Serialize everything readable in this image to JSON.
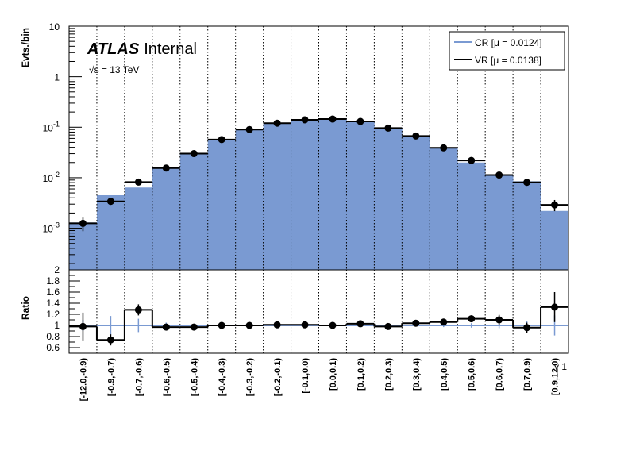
{
  "chart_data": [
    {
      "type": "histogram",
      "panel": "main",
      "ylabel": "Evts./bin",
      "yscale": "log",
      "ylim": [
        0.00015,
        10
      ],
      "ytick_labels": [
        {
          "v": 0.001,
          "label": "10",
          "exp": "-3"
        },
        {
          "v": 0.01,
          "label": "10",
          "exp": "-2"
        },
        {
          "v": 0.1,
          "label": "10",
          "exp": "-1"
        },
        {
          "v": 1,
          "label": "1",
          "exp": ""
        },
        {
          "v": 10,
          "label": "10",
          "exp": ""
        }
      ],
      "atlas_label": "ATLAS",
      "atlas_sub": "Internal",
      "energy_label": "√s = 13 TeV",
      "legend": {
        "position": "top-right",
        "entries": [
          "CR [μ = 0.0124]",
          "VR [μ = 0.0138]"
        ]
      },
      "categories": [
        "[-12.0,-0.9)",
        "[-0.9,-0.7)",
        "[-0.7,-0.6)",
        "[-0.6,-0.5)",
        "[-0.5,-0.4)",
        "[-0.4,-0.3)",
        "[-0.3,-0.2)",
        "[-0.2,-0.1)",
        "[-0.1,0.0)",
        "[0.0,0.1)",
        "[0.1,0.2)",
        "[0.2,0.3)",
        "[0.3,0.4)",
        "[0.4,0.5)",
        "[0.5,0.6)",
        "[0.6,0.7)",
        "[0.7,0.9)",
        "[0.9,12.0)"
      ],
      "series": [
        {
          "name": "CR [μ = 0.0124]",
          "style": "filled-histogram",
          "values": [
            0.0013,
            0.0045,
            0.0064,
            0.016,
            0.031,
            0.058,
            0.09,
            0.12,
            0.14,
            0.145,
            0.13,
            0.098,
            0.065,
            0.038,
            0.02,
            0.011,
            0.0085,
            0.0022
          ]
        },
        {
          "name": "VR [μ = 0.0138]",
          "style": "line-with-points",
          "values": [
            0.00125,
            0.0034,
            0.0082,
            0.0155,
            0.03,
            0.057,
            0.09,
            0.12,
            0.14,
            0.145,
            0.13,
            0.096,
            0.067,
            0.039,
            0.022,
            0.0113,
            0.0081,
            0.0029
          ],
          "errors_rel": [
            0.3,
            0.14,
            0.1,
            0.06,
            0.04,
            0.03,
            0.02,
            0.02,
            0.02,
            0.02,
            0.02,
            0.02,
            0.03,
            0.04,
            0.06,
            0.08,
            0.09,
            0.25
          ]
        }
      ],
      "colors": {
        "cr": "#7a9ad2",
        "vr": "#000000"
      }
    },
    {
      "type": "line",
      "panel": "ratio",
      "ylabel": "Ratio",
      "ylim": [
        0.5,
        2
      ],
      "ytick_labels": [
        "0.6",
        "0.8",
        "1",
        "1.2",
        "1.4",
        "1.6",
        "1.8",
        "2"
      ],
      "xlabel_suffix": "γ 1",
      "cr_ratio": {
        "values": 1.0,
        "errors": [
          0.1,
          0.17,
          0.12,
          0.05,
          0.03,
          0.02,
          0.02,
          0.02,
          0.02,
          0.02,
          0.02,
          0.02,
          0.02,
          0.03,
          0.04,
          0.05,
          0.08,
          0.18
        ]
      },
      "vr_ratio": {
        "values": [
          0.98,
          0.74,
          1.28,
          0.97,
          0.97,
          1.0,
          1.0,
          1.01,
          1.01,
          1.0,
          1.03,
          0.98,
          1.04,
          1.06,
          1.12,
          1.1,
          0.96,
          1.33
        ],
        "errors": [
          0.25,
          0.1,
          0.1,
          0.06,
          0.04,
          0.02,
          0.02,
          0.02,
          0.02,
          0.02,
          0.03,
          0.03,
          0.04,
          0.04,
          0.06,
          0.09,
          0.09,
          0.27
        ]
      }
    }
  ]
}
